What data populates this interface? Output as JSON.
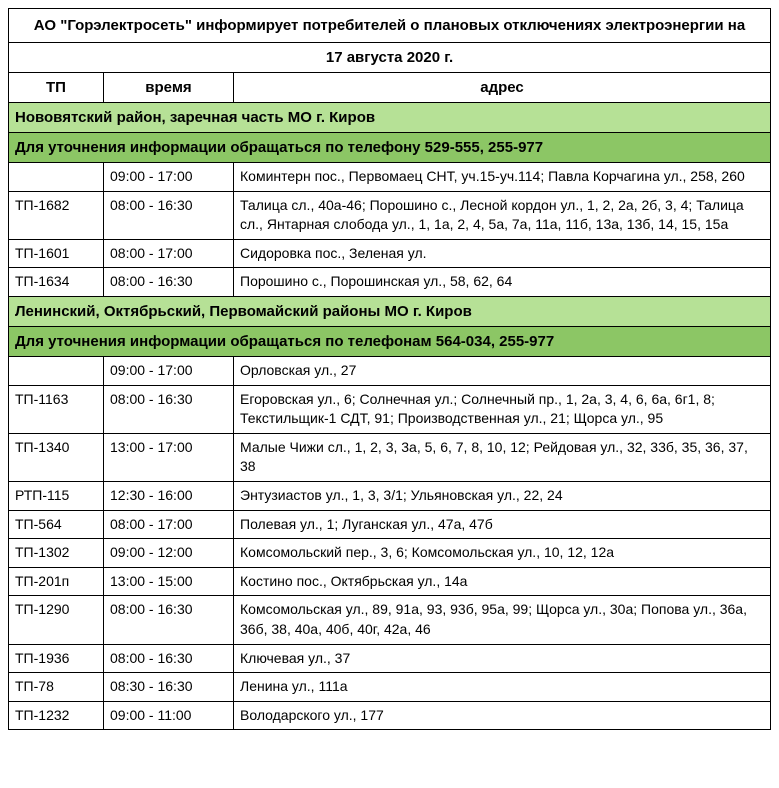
{
  "title": "АО \"Горэлектросеть\" информирует потребителей о плановых отключениях электроэнергии на",
  "date": "17 августа 2020 г.",
  "headers": {
    "tp": "ТП",
    "time": "время",
    "addr": "адрес"
  },
  "colors": {
    "section_light": "#b6e196",
    "section_dark": "#8cc665",
    "border": "#000000",
    "background": "#ffffff",
    "text": "#000000"
  },
  "sections": [
    {
      "district": "Нововятский район, заречная часть МО г. Киров",
      "contact": "Для уточнения информации обращаться по телефону 529-555, 255-977",
      "rows": [
        {
          "tp": "",
          "time": "09:00 - 17:00",
          "addr": "Коминтерн пос., Первомаец СНТ, уч.15-уч.114; Павла Корчагина ул., 258, 260"
        },
        {
          "tp": "ТП-1682",
          "time": "08:00 - 16:30",
          "addr": "Талица сл., 40а-46; Порошино с., Лесной кордон ул., 1, 2, 2а, 2б, 3, 4; Талица сл., Янтарная слобода ул., 1, 1а, 2, 4, 5а, 7а, 11а, 11б, 13а, 13б, 14, 15, 15а"
        },
        {
          "tp": "ТП-1601",
          "time": "08:00 - 17:00",
          "addr": "Сидоровка пос., Зеленая ул."
        },
        {
          "tp": "ТП-1634",
          "time": "08:00 - 16:30",
          "addr": "Порошино с., Порошинская ул., 58, 62, 64"
        }
      ]
    },
    {
      "district": "Ленинский, Октябрьский, Первомайский районы МО г. Киров",
      "contact": "Для уточнения информации обращаться по телефонам 564-034, 255-977",
      "rows": [
        {
          "tp": "",
          "time": "09:00 - 17:00",
          "addr": "Орловская ул., 27"
        },
        {
          "tp": "ТП-1163",
          "time": "08:00 - 16:30",
          "addr": "Егоровская ул., 6; Солнечная ул.; Солнечный пр., 1, 2а, 3, 4, 6, 6а, 6г1, 8; Текстильщик-1 СДТ, 91; Производственная ул., 21; Щорса ул., 95"
        },
        {
          "tp": "ТП-1340",
          "time": "13:00 - 17:00",
          "addr": "Малые Чижи сл., 1, 2, 3, 3а, 5, 6, 7, 8, 10, 12; Рейдовая ул., 32, 33б, 35, 36, 37, 38"
        },
        {
          "tp": "РТП-115",
          "time": "12:30 - 16:00",
          "addr": "Энтузиастов ул., 1, 3, 3/1; Ульяновская ул., 22, 24"
        },
        {
          "tp": "ТП-564",
          "time": "08:00 - 17:00",
          "addr": "Полевая ул., 1; Луганская ул., 47а, 47б"
        },
        {
          "tp": "ТП-1302",
          "time": "09:00 - 12:00",
          "addr": "Комсомольский пер., 3, 6; Комсомольская ул., 10, 12, 12а"
        },
        {
          "tp": "ТП-201п",
          "time": "13:00 - 15:00",
          "addr": "Костино пос., Октябрьская ул., 14а"
        },
        {
          "tp": "ТП-1290",
          "time": "08:00 - 16:30",
          "addr": "Комсомольская ул., 89, 91а, 93, 93б, 95а, 99; Щорса ул., 30а; Попова ул., 36а, 36б, 38, 40а, 40б, 40г, 42а, 46"
        },
        {
          "tp": "ТП-1936",
          "time": "08:00 - 16:30",
          "addr": "Ключевая ул., 37"
        },
        {
          "tp": "ТП-78",
          "time": "08:30 - 16:30",
          "addr": "Ленина ул., 111а"
        },
        {
          "tp": "ТП-1232",
          "time": "09:00 - 11:00",
          "addr": "Володарского ул., 177"
        }
      ]
    }
  ]
}
